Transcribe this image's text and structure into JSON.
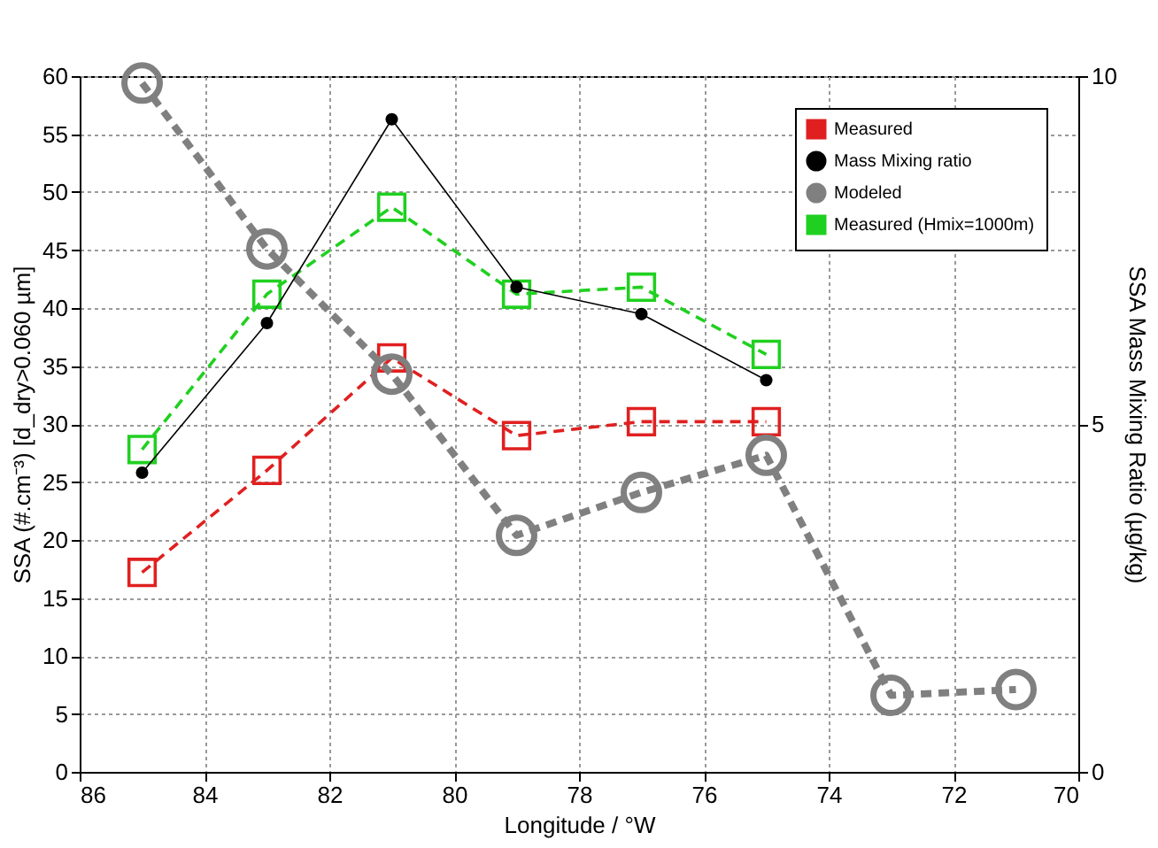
{
  "chart_data": {
    "type": "line",
    "xlabel": "Longitude / °W",
    "ylabel": "SSA (#.cm⁻³) [d_dry>0.060 µm]",
    "y2label": "SSA Mass Mixing Ratio (µg/kg)",
    "xlim": [
      86,
      70
    ],
    "xticks": [
      86,
      84,
      82,
      80,
      78,
      76,
      74,
      72,
      70
    ],
    "ylim": [
      0,
      60
    ],
    "yticks": [
      0,
      5,
      10,
      15,
      20,
      25,
      30,
      35,
      40,
      45,
      50,
      55,
      60
    ],
    "y2lim": [
      0,
      10
    ],
    "y2ticks": [
      0,
      5,
      10
    ],
    "grid": true,
    "legend": "top right",
    "series": [
      {
        "name": "Measured",
        "color": "#e02020",
        "marker": "square",
        "line_style": "dashed",
        "x": [
          85,
          83,
          81,
          79,
          77,
          75
        ],
        "values": [
          17.2,
          26,
          35.7,
          29,
          30.2,
          30.2
        ]
      },
      {
        "name": "Mass Mixing ratio",
        "color": "#000000",
        "marker": "circle",
        "line_style": "solid",
        "axis": "y2",
        "x": [
          85,
          83,
          81,
          79,
          77,
          75
        ],
        "values": [
          4.3,
          6.45,
          9.38,
          6.97,
          6.58,
          5.63
        ]
      },
      {
        "name": "Modeled",
        "color": "#808080",
        "marker": "circle",
        "line_style": "dashed",
        "x": [
          85,
          83,
          81,
          79,
          77,
          75,
          73,
          71
        ],
        "values": [
          59.4,
          45.1,
          34.3,
          20.4,
          24.1,
          27.3,
          6.6,
          7.1
        ]
      },
      {
        "name": "Measured (Hmix=1000m)",
        "color": "#20d020",
        "marker": "square",
        "line_style": "dashed",
        "x": [
          85,
          83,
          81,
          79,
          77,
          75
        ],
        "values": [
          27.8,
          41.2,
          48.7,
          41.2,
          41.8,
          36
        ]
      }
    ]
  }
}
